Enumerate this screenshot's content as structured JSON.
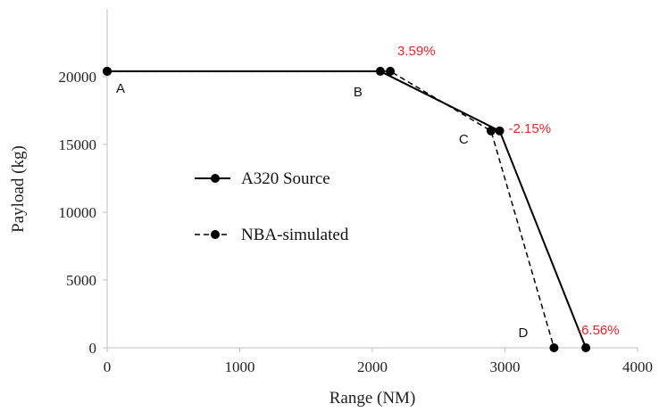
{
  "chart_data": {
    "type": "line",
    "xlabel": "Range (NM)",
    "ylabel": "Payload (kg)",
    "xlim": [
      0,
      4000
    ],
    "ylim": [
      0,
      25000
    ],
    "xticks": [
      "0",
      "1000",
      "2000",
      "3000",
      "4000"
    ],
    "yticks": [
      "0",
      "5000",
      "10000",
      "15000",
      "20000"
    ],
    "grid": false,
    "legend_position": "center-left",
    "series": [
      {
        "name": "A320 Source",
        "style": "solid",
        "color": "#000000",
        "x": [
          0,
          2060,
          2960,
          3610
        ],
        "y": [
          20400,
          20400,
          16000,
          0
        ]
      },
      {
        "name": "NBA-simulated",
        "style": "dashed",
        "color": "#000000",
        "x": [
          0,
          2135,
          2895,
          3370
        ],
        "y": [
          20400,
          20400,
          16000,
          0
        ]
      }
    ],
    "point_labels": [
      {
        "text": "A",
        "x": 0,
        "y": 20400
      },
      {
        "text": "B",
        "x": 2060,
        "y": 20400
      },
      {
        "text": "C",
        "x": 2895,
        "y": 16000
      },
      {
        "text": "D",
        "x": 3370,
        "y": 0
      }
    ],
    "annotations": [
      {
        "text": "3.59%",
        "x": 2135,
        "y": 20400,
        "color": "#e8252b"
      },
      {
        "text": "-2.15%",
        "x": 2960,
        "y": 16000,
        "color": "#e8252b"
      },
      {
        "text": "-6.56%",
        "x": 3610,
        "y": 0,
        "color": "#e8252b"
      }
    ]
  }
}
